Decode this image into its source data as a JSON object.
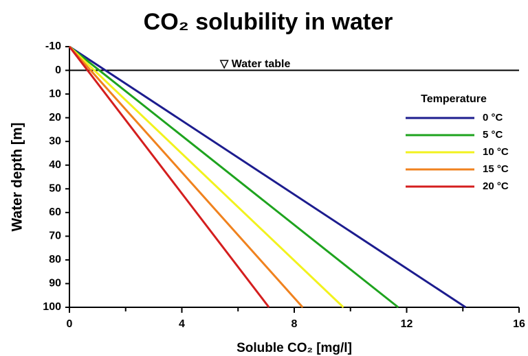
{
  "chart_data": {
    "type": "line",
    "title": "CO₂ solubility in water",
    "xlabel": "Soluble CO₂ [mg/l]",
    "ylabel": "Water depth [m]",
    "depth": [
      -10,
      100
    ],
    "series": [
      {
        "name": "0 °C",
        "color": "#1c1c8e",
        "values": [
          0,
          14.1
        ]
      },
      {
        "name": "5 °C",
        "color": "#1ea31e",
        "values": [
          0,
          11.7
        ]
      },
      {
        "name": "10 °C",
        "color": "#f2f21e",
        "values": [
          0,
          9.75
        ]
      },
      {
        "name": "15 °C",
        "color": "#f0821e",
        "values": [
          0,
          8.3
        ]
      },
      {
        "name": "20 °C",
        "color": "#d41e1e",
        "values": [
          0,
          7.1
        ]
      }
    ],
    "legend_title": "Temperature",
    "legend": "right",
    "water_table": {
      "depth": 0,
      "label": "▽ Water table"
    },
    "xlim": [
      0,
      16
    ],
    "xticks": [
      0,
      4,
      8,
      12,
      16
    ],
    "xminorticks": [
      2,
      6,
      10,
      14
    ],
    "ylim": [
      -10,
      100
    ],
    "yticks": [
      -10,
      0,
      10,
      20,
      30,
      40,
      50,
      60,
      70,
      80,
      90,
      100
    ],
    "y_inverted": true
  }
}
